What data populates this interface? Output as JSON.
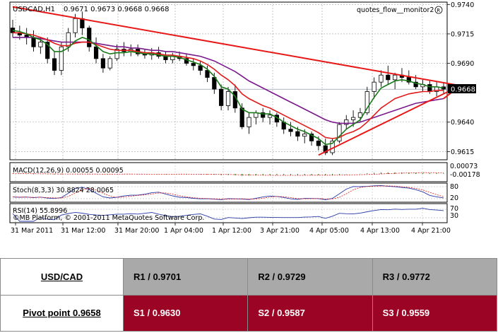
{
  "chart_data": {
    "type": "candlestick",
    "title": "USDCAD,H1",
    "ohlc_label": "0.9671 0.9673 0.9668 0.9668",
    "watermark": "quotes_flow__monitor2",
    "current_price": "0.9668",
    "y_ticks": [
      "0.9740",
      "0.9715",
      "0.9690",
      "0.9640",
      "0.9615"
    ],
    "y_range": [
      0.9608,
      0.9742
    ],
    "x_ticks": [
      "31 Mar 2011",
      "31 Mar 12:00",
      "31 Mar 20:00",
      "1 Apr 04:00",
      "1 Apr 12:00",
      "3 Apr 21:00",
      "4 Apr 05:00",
      "4 Apr 13:00",
      "4 Apr 21:00"
    ],
    "candles": [
      [
        0.972,
        0.9727,
        0.9712,
        0.9716
      ],
      [
        0.9716,
        0.9722,
        0.971,
        0.9714
      ],
      [
        0.9714,
        0.972,
        0.9706,
        0.9712
      ],
      [
        0.9712,
        0.9718,
        0.97,
        0.9704
      ],
      [
        0.9704,
        0.9712,
        0.9698,
        0.9708
      ],
      [
        0.9708,
        0.9712,
        0.969,
        0.9694
      ],
      [
        0.9694,
        0.97,
        0.968,
        0.9684
      ],
      [
        0.9684,
        0.9708,
        0.968,
        0.9704
      ],
      [
        0.9704,
        0.972,
        0.97,
        0.9716
      ],
      [
        0.9716,
        0.9732,
        0.9712,
        0.9728
      ],
      [
        0.9728,
        0.9734,
        0.9714,
        0.972
      ],
      [
        0.972,
        0.9722,
        0.97,
        0.9704
      ],
      [
        0.9704,
        0.9712,
        0.969,
        0.9694
      ],
      [
        0.9694,
        0.9698,
        0.9682,
        0.9686
      ],
      [
        0.9686,
        0.9696,
        0.9684,
        0.9694
      ],
      [
        0.9694,
        0.9706,
        0.9692,
        0.9702
      ],
      [
        0.9702,
        0.9708,
        0.9696,
        0.97
      ],
      [
        0.97,
        0.9706,
        0.9696,
        0.9702
      ],
      [
        0.9702,
        0.9706,
        0.9696,
        0.9698
      ],
      [
        0.9698,
        0.9702,
        0.9694,
        0.9697
      ],
      [
        0.9697,
        0.9703,
        0.9693,
        0.9699
      ],
      [
        0.9699,
        0.9704,
        0.9694,
        0.9696
      ],
      [
        0.9696,
        0.97,
        0.969,
        0.9693
      ],
      [
        0.9693,
        0.9699,
        0.969,
        0.9696
      ],
      [
        0.9696,
        0.97,
        0.9692,
        0.9694
      ],
      [
        0.9694,
        0.9698,
        0.9688,
        0.969
      ],
      [
        0.969,
        0.9694,
        0.9684,
        0.9688
      ],
      [
        0.9688,
        0.9692,
        0.968,
        0.9684
      ],
      [
        0.9684,
        0.9688,
        0.9674,
        0.9678
      ],
      [
        0.9678,
        0.9682,
        0.9664,
        0.9668
      ],
      [
        0.9668,
        0.9672,
        0.965,
        0.9654
      ],
      [
        0.9654,
        0.967,
        0.965,
        0.9666
      ],
      [
        0.9666,
        0.9672,
        0.9648,
        0.9652
      ],
      [
        0.9652,
        0.9656,
        0.9634,
        0.9636
      ],
      [
        0.9636,
        0.9648,
        0.963,
        0.9644
      ],
      [
        0.9644,
        0.965,
        0.9638,
        0.9648
      ],
      [
        0.9648,
        0.9652,
        0.964,
        0.9644
      ],
      [
        0.9644,
        0.965,
        0.9638,
        0.9646
      ],
      [
        0.9646,
        0.9648,
        0.9636,
        0.964
      ],
      [
        0.964,
        0.9644,
        0.963,
        0.9634
      ],
      [
        0.9634,
        0.964,
        0.9628,
        0.9632
      ],
      [
        0.9632,
        0.9636,
        0.9624,
        0.9628
      ],
      [
        0.9628,
        0.9634,
        0.9622,
        0.963
      ],
      [
        0.963,
        0.9632,
        0.962,
        0.9624
      ],
      [
        0.9624,
        0.9628,
        0.9616,
        0.962
      ],
      [
        0.962,
        0.9626,
        0.9612,
        0.9614
      ],
      [
        0.9614,
        0.9626,
        0.9612,
        0.9624
      ],
      [
        0.9624,
        0.964,
        0.9622,
        0.9638
      ],
      [
        0.9638,
        0.9646,
        0.9634,
        0.9642
      ],
      [
        0.9642,
        0.965,
        0.9636,
        0.9644
      ],
      [
        0.9644,
        0.9652,
        0.964,
        0.9648
      ],
      [
        0.9648,
        0.967,
        0.9646,
        0.9666
      ],
      [
        0.9666,
        0.9678,
        0.966,
        0.9674
      ],
      [
        0.9674,
        0.9684,
        0.967,
        0.968
      ],
      [
        0.968,
        0.9688,
        0.9672,
        0.9676
      ],
      [
        0.9676,
        0.9682,
        0.9668,
        0.968
      ],
      [
        0.968,
        0.9686,
        0.9674,
        0.9678
      ],
      [
        0.9678,
        0.9684,
        0.9672,
        0.9674
      ],
      [
        0.9674,
        0.968,
        0.9668,
        0.967
      ],
      [
        0.967,
        0.9676,
        0.9666,
        0.9672
      ],
      [
        0.9672,
        0.9676,
        0.9664,
        0.9666
      ],
      [
        0.9666,
        0.9674,
        0.9662,
        0.967
      ],
      [
        0.967,
        0.9674,
        0.9664,
        0.9668
      ]
    ],
    "ma_green": [
      0.9718,
      0.9717,
      0.9715,
      0.9712,
      0.971,
      0.9706,
      0.97,
      0.97,
      0.9703,
      0.9709,
      0.9712,
      0.971,
      0.9705,
      0.97,
      0.9698,
      0.9699,
      0.9699,
      0.97,
      0.9699,
      0.9698,
      0.9698,
      0.9697,
      0.9696,
      0.9696,
      0.9695,
      0.9693,
      0.9691,
      0.9689,
      0.9685,
      0.9679,
      0.967,
      0.9668,
      0.9662,
      0.9651,
      0.9648,
      0.9648,
      0.9647,
      0.9647,
      0.9644,
      0.964,
      0.9637,
      0.9634,
      0.9632,
      0.9629,
      0.9626,
      0.9621,
      0.9622,
      0.9628,
      0.9634,
      0.9638,
      0.9642,
      0.9652,
      0.9661,
      0.9669,
      0.9672,
      0.9675,
      0.9676,
      0.9675,
      0.9673,
      0.9672,
      0.967,
      0.967,
      0.9669
    ],
    "ma_red": [
      0.9716,
      0.9716,
      0.9715,
      0.9714,
      0.9712,
      0.971,
      0.9707,
      0.9705,
      0.9705,
      0.9707,
      0.9708,
      0.9708,
      0.9706,
      0.9704,
      0.9702,
      0.9701,
      0.9701,
      0.9701,
      0.97,
      0.9699,
      0.9699,
      0.9698,
      0.9697,
      0.9697,
      0.9696,
      0.9695,
      0.9694,
      0.9692,
      0.9689,
      0.9685,
      0.968,
      0.9676,
      0.9671,
      0.9664,
      0.966,
      0.9657,
      0.9654,
      0.9652,
      0.9649,
      0.9646,
      0.9643,
      0.964,
      0.9637,
      0.9634,
      0.9631,
      0.9627,
      0.9626,
      0.9627,
      0.963,
      0.9632,
      0.9635,
      0.964,
      0.9646,
      0.9652,
      0.9656,
      0.966,
      0.9662,
      0.9664,
      0.9665,
      0.9666,
      0.9666,
      0.9667,
      0.9667
    ],
    "ma_purple": [
      0.9712,
      0.9712,
      0.9712,
      0.9712,
      0.9711,
      0.971,
      0.9709,
      0.9708,
      0.9708,
      0.9708,
      0.9708,
      0.9708,
      0.9707,
      0.9706,
      0.9705,
      0.9704,
      0.9704,
      0.9703,
      0.9703,
      0.9702,
      0.9701,
      0.9701,
      0.97,
      0.97,
      0.9699,
      0.9698,
      0.9697,
      0.9696,
      0.9694,
      0.9692,
      0.9689,
      0.9686,
      0.9683,
      0.9679,
      0.9675,
      0.9672,
      0.9669,
      0.9666,
      0.9663,
      0.966,
      0.9657,
      0.9654,
      0.9651,
      0.9648,
      0.9645,
      0.9642,
      0.964,
      0.9639,
      0.9639,
      0.9639,
      0.964,
      0.9642,
      0.9644,
      0.9646,
      0.9648,
      0.965,
      0.9652,
      0.9654,
      0.9656,
      0.9657,
      0.9658,
      0.9659,
      0.966
    ],
    "trendlines": [
      {
        "name": "upper",
        "from": [
          0,
          0.9738
        ],
        "to": [
          64,
          0.9671
        ]
      },
      {
        "name": "lower",
        "from": [
          44,
          0.9612
        ],
        "to": [
          64,
          0.9671
        ]
      }
    ],
    "macd": {
      "label": "MACD(12,26,9) 0.00055 0.00095",
      "ticks": [
        "0.00073",
        "-0.00178"
      ]
    },
    "stoch": {
      "label": "Stoch(8,3,3) 30.8824 28.0065",
      "ticks": [
        "80",
        "20"
      ]
    },
    "rsi": {
      "label": "RSI(14) 55.8996",
      "ticks": [
        "70",
        "30"
      ]
    },
    "copyright": "©MB Platform, © 2001-2011 MetaQuotes Software Corp."
  },
  "pivot_table": {
    "pair": "USD/CAD",
    "pivot": "Pivot point 0.9658",
    "r1": "R1 / 0.9701",
    "r2": "R2 / 0.9729",
    "r3": "R3 / 0.9772",
    "s1": "S1 / 0.9630",
    "s2": "S2 / 0.9587",
    "s3": "S3 / 0.9559"
  },
  "colors": {
    "bull": "#ffffff",
    "bear": "#000000",
    "ma_green": "#1a7a1a",
    "ma_red": "#e21a1a",
    "ma_purple": "#7a1a8c",
    "trendline": "#e81818",
    "r_row": "#a9a9a9",
    "s_row": "#9b0424"
  }
}
